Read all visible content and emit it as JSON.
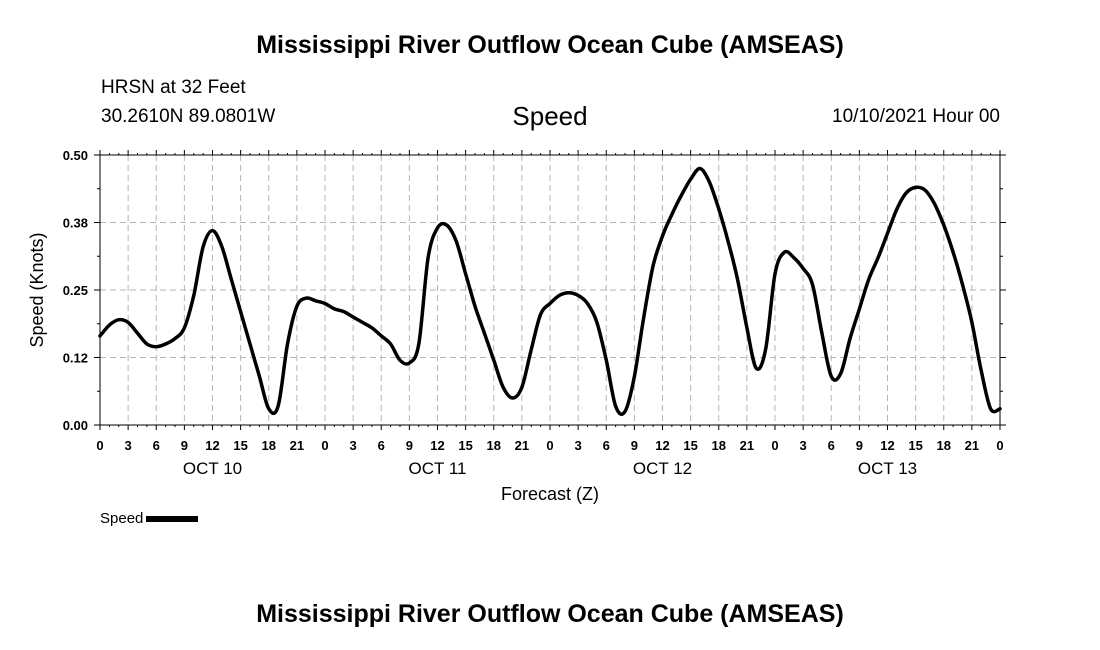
{
  "header": {
    "title": "Mississippi River Outflow Ocean Cube (AMSEAS)",
    "station": "HRSN at 32 Feet",
    "coords": "30.2610N  89.0801W",
    "subtitle": "Speed",
    "datetime": "10/10/2021 Hour 00"
  },
  "footer": {
    "title": "Mississippi River Outflow Ocean Cube (AMSEAS)"
  },
  "legend": {
    "label": "Speed"
  },
  "chart_data": {
    "type": "line",
    "title": "Speed",
    "xlabel": "Forecast (Z)",
    "ylabel": "Speed (Knots)",
    "ylim": [
      0,
      0.5
    ],
    "yticks": [
      "0.00",
      "0.12",
      "0.25",
      "0.38",
      "0.50"
    ],
    "xlim_hours": [
      0,
      96
    ],
    "xticks": [
      "0",
      "3",
      "6",
      "9",
      "12",
      "15",
      "18",
      "21",
      "0",
      "3",
      "6",
      "9",
      "12",
      "15",
      "18",
      "21",
      "0",
      "3",
      "6",
      "9",
      "12",
      "15",
      "18",
      "21",
      "0",
      "3",
      "6",
      "9",
      "12",
      "15",
      "18",
      "21",
      "0"
    ],
    "day_labels": [
      "OCT 10",
      "OCT 11",
      "OCT 12",
      "OCT 13"
    ],
    "grid": true,
    "series": [
      {
        "name": "Speed",
        "color": "#000000",
        "x": [
          0,
          1,
          2,
          3,
          4,
          5,
          6,
          7,
          8,
          9,
          10,
          11,
          12,
          13,
          14,
          15,
          16,
          17,
          18,
          19,
          20,
          21,
          22,
          23,
          24,
          25,
          26,
          27,
          28,
          29,
          30,
          31,
          32,
          33,
          34,
          35,
          36,
          37,
          38,
          39,
          40,
          41,
          42,
          43,
          44,
          45,
          46,
          47,
          48,
          49,
          50,
          51,
          52,
          53,
          54,
          55,
          56,
          57,
          58,
          59,
          60,
          61,
          62,
          63,
          64,
          65,
          66,
          67,
          68,
          69,
          70,
          71,
          72,
          73,
          74,
          75,
          76,
          77,
          78,
          79,
          80,
          81,
          82,
          83,
          84,
          85,
          86,
          87,
          88,
          89,
          90,
          91,
          92,
          93,
          94,
          95,
          96
        ],
        "y": [
          0.165,
          0.185,
          0.195,
          0.19,
          0.17,
          0.15,
          0.145,
          0.15,
          0.16,
          0.18,
          0.24,
          0.33,
          0.36,
          0.33,
          0.27,
          0.21,
          0.15,
          0.09,
          0.03,
          0.035,
          0.15,
          0.22,
          0.235,
          0.23,
          0.225,
          0.215,
          0.21,
          0.2,
          0.19,
          0.18,
          0.165,
          0.15,
          0.12,
          0.115,
          0.15,
          0.31,
          0.365,
          0.37,
          0.34,
          0.28,
          0.22,
          0.17,
          0.12,
          0.07,
          0.05,
          0.07,
          0.14,
          0.205,
          0.225,
          0.24,
          0.245,
          0.24,
          0.225,
          0.19,
          0.12,
          0.035,
          0.025,
          0.09,
          0.2,
          0.295,
          0.35,
          0.39,
          0.425,
          0.455,
          0.475,
          0.45,
          0.4,
          0.34,
          0.27,
          0.18,
          0.105,
          0.14,
          0.28,
          0.32,
          0.31,
          0.29,
          0.26,
          0.17,
          0.09,
          0.095,
          0.16,
          0.215,
          0.27,
          0.31,
          0.355,
          0.4,
          0.43,
          0.44,
          0.435,
          0.41,
          0.37,
          0.32,
          0.26,
          0.19,
          0.1,
          0.03,
          0.03
        ]
      }
    ]
  }
}
